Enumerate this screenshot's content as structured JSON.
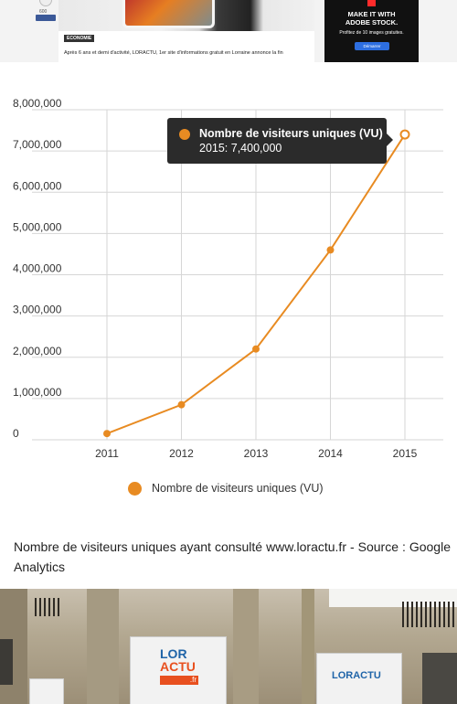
{
  "top_strip": {
    "social_count": "600",
    "category_badge": "ECONOMIE",
    "article_snippet": "Après 6 ans et demi d'activité, LORACTU, 1er site d'informations gratuit en Lorraine annonce la fin",
    "ad": {
      "headline_line1": "MAKE IT WITH",
      "headline_line2": "ADOBE STOCK.",
      "subtext": "Profitez de 10 images gratuites.",
      "cta": "Démarrer"
    }
  },
  "chart_data": {
    "type": "line",
    "x": [
      "2011",
      "2012",
      "2013",
      "2014",
      "2015"
    ],
    "series": [
      {
        "name": "Nombre de visiteurs uniques (VU)",
        "values": [
          150000,
          850000,
          2200000,
          4600000,
          7400000
        ],
        "color": "#e88b22"
      }
    ],
    "y_ticks": [
      "0",
      "1,000,000",
      "2,000,000",
      "3,000,000",
      "4,000,000",
      "5,000,000",
      "6,000,000",
      "7,000,000",
      "8,000,000"
    ],
    "ylim": [
      0,
      8000000
    ],
    "grid": true,
    "legend_position": "bottom-center",
    "tooltip": {
      "series": "Nombre de visiteurs uniques (VU)",
      "text": "2015: 7,400,000"
    }
  },
  "caption": "Nombre de visiteurs uniques ayant consulté www.loractu.fr - Source : Google Analytics",
  "photo": {
    "sign_main_line1": "LOR",
    "sign_main_line2": "ACTU",
    "sign_main_suffix": ".fr",
    "sign_right": "LORACTU"
  }
}
